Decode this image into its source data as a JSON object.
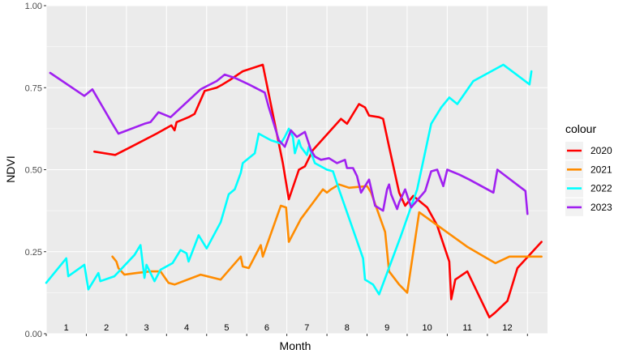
{
  "chart_data": {
    "type": "line",
    "xlabel": "Month",
    "ylabel": "NDVI",
    "ylim": [
      0,
      1
    ],
    "xlim": [
      0,
      12.5
    ],
    "y_ticks": [
      0,
      0.25,
      0.5,
      0.75,
      1
    ],
    "y_tick_labels": [
      "0.00",
      "0.25",
      "0.50",
      "0.75",
      "1.00"
    ],
    "month_labels": [
      "1",
      "2",
      "3",
      "4",
      "5",
      "6",
      "7",
      "8",
      "9",
      "10",
      "11",
      "12"
    ],
    "grid": true,
    "legend_title": "colour",
    "legend_position": "right",
    "series": [
      {
        "name": "2020",
        "color": "#ff0000",
        "points": [
          [
            1.2,
            0.555
          ],
          [
            1.72,
            0.545
          ],
          [
            2.12,
            0.57
          ],
          [
            2.75,
            0.61
          ],
          [
            3.12,
            0.635
          ],
          [
            3.2,
            0.62
          ],
          [
            3.25,
            0.645
          ],
          [
            3.55,
            0.66
          ],
          [
            3.7,
            0.67
          ],
          [
            3.95,
            0.74
          ],
          [
            4.25,
            0.75
          ],
          [
            4.4,
            0.76
          ],
          [
            4.6,
            0.775
          ],
          [
            4.9,
            0.8
          ],
          [
            5.4,
            0.82
          ],
          [
            5.9,
            0.52
          ],
          [
            6.05,
            0.41
          ],
          [
            6.3,
            0.5
          ],
          [
            6.45,
            0.51
          ],
          [
            6.65,
            0.56
          ],
          [
            7.35,
            0.655
          ],
          [
            7.5,
            0.64
          ],
          [
            7.8,
            0.7
          ],
          [
            7.95,
            0.69
          ],
          [
            8.05,
            0.665
          ],
          [
            8.3,
            0.66
          ],
          [
            8.4,
            0.655
          ],
          [
            8.55,
            0.57
          ],
          [
            8.8,
            0.43
          ],
          [
            8.95,
            0.39
          ],
          [
            9.15,
            0.42
          ],
          [
            9.5,
            0.385
          ],
          [
            9.75,
            0.33
          ],
          [
            10.05,
            0.22
          ],
          [
            10.1,
            0.105
          ],
          [
            10.2,
            0.165
          ],
          [
            10.5,
            0.19
          ],
          [
            11.05,
            0.05
          ],
          [
            11.2,
            0.065
          ],
          [
            11.5,
            0.1
          ],
          [
            11.75,
            0.2
          ],
          [
            12.05,
            0.24
          ],
          [
            12.35,
            0.28
          ]
        ]
      },
      {
        "name": "2021",
        "color": "#ff8c00",
        "points": [
          [
            1.65,
            0.235
          ],
          [
            1.75,
            0.22
          ],
          [
            1.8,
            0.2
          ],
          [
            1.95,
            0.18
          ],
          [
            2.25,
            0.185
          ],
          [
            2.6,
            0.19
          ],
          [
            2.85,
            0.19
          ],
          [
            3.05,
            0.155
          ],
          [
            3.2,
            0.15
          ],
          [
            3.85,
            0.18
          ],
          [
            4.35,
            0.165
          ],
          [
            4.85,
            0.235
          ],
          [
            4.9,
            0.205
          ],
          [
            5.05,
            0.2
          ],
          [
            5.35,
            0.27
          ],
          [
            5.4,
            0.235
          ],
          [
            5.85,
            0.39
          ],
          [
            5.98,
            0.385
          ],
          [
            6.05,
            0.28
          ],
          [
            6.35,
            0.35
          ],
          [
            6.9,
            0.44
          ],
          [
            7.0,
            0.43
          ],
          [
            7.1,
            0.44
          ],
          [
            7.3,
            0.455
          ],
          [
            7.55,
            0.445
          ],
          [
            8.0,
            0.45
          ],
          [
            8.1,
            0.43
          ],
          [
            8.45,
            0.31
          ],
          [
            8.55,
            0.19
          ],
          [
            8.8,
            0.15
          ],
          [
            9.0,
            0.125
          ],
          [
            9.3,
            0.37
          ],
          [
            10.5,
            0.265
          ],
          [
            11.2,
            0.215
          ],
          [
            11.55,
            0.235
          ],
          [
            12.35,
            0.235
          ]
        ]
      },
      {
        "name": "2022",
        "color": "#00ffff",
        "points": [
          [
            0.0,
            0.155
          ],
          [
            0.5,
            0.23
          ],
          [
            0.55,
            0.175
          ],
          [
            0.95,
            0.21
          ],
          [
            1.05,
            0.135
          ],
          [
            1.3,
            0.185
          ],
          [
            1.35,
            0.16
          ],
          [
            1.7,
            0.175
          ],
          [
            2.2,
            0.24
          ],
          [
            2.35,
            0.27
          ],
          [
            2.45,
            0.17
          ],
          [
            2.5,
            0.21
          ],
          [
            2.7,
            0.16
          ],
          [
            2.85,
            0.195
          ],
          [
            3.15,
            0.215
          ],
          [
            3.35,
            0.255
          ],
          [
            3.5,
            0.245
          ],
          [
            3.55,
            0.22
          ],
          [
            3.8,
            0.3
          ],
          [
            4.0,
            0.26
          ],
          [
            4.35,
            0.34
          ],
          [
            4.55,
            0.425
          ],
          [
            4.7,
            0.44
          ],
          [
            4.85,
            0.49
          ],
          [
            4.9,
            0.52
          ],
          [
            5.05,
            0.535
          ],
          [
            5.2,
            0.55
          ],
          [
            5.3,
            0.61
          ],
          [
            5.6,
            0.59
          ],
          [
            5.85,
            0.58
          ],
          [
            5.95,
            0.6
          ],
          [
            6.05,
            0.625
          ],
          [
            6.15,
            0.6
          ],
          [
            6.2,
            0.55
          ],
          [
            6.3,
            0.59
          ],
          [
            6.35,
            0.57
          ],
          [
            6.5,
            0.545
          ],
          [
            6.55,
            0.57
          ],
          [
            6.7,
            0.52
          ],
          [
            7.0,
            0.5
          ],
          [
            7.15,
            0.495
          ],
          [
            7.3,
            0.44
          ],
          [
            7.9,
            0.23
          ],
          [
            7.95,
            0.165
          ],
          [
            8.15,
            0.15
          ],
          [
            8.3,
            0.12
          ],
          [
            8.85,
            0.3
          ],
          [
            9.25,
            0.44
          ],
          [
            9.6,
            0.64
          ],
          [
            9.85,
            0.69
          ],
          [
            10.05,
            0.72
          ],
          [
            10.25,
            0.7
          ],
          [
            10.65,
            0.77
          ],
          [
            11.4,
            0.82
          ],
          [
            12.05,
            0.76
          ],
          [
            12.1,
            0.8
          ]
        ]
      },
      {
        "name": "2023",
        "color": "#a020f0",
        "points": [
          [
            0.1,
            0.795
          ],
          [
            0.95,
            0.725
          ],
          [
            1.15,
            0.745
          ],
          [
            1.65,
            0.64
          ],
          [
            1.8,
            0.61
          ],
          [
            2.45,
            0.64
          ],
          [
            2.6,
            0.645
          ],
          [
            2.8,
            0.675
          ],
          [
            3.1,
            0.66
          ],
          [
            3.85,
            0.745
          ],
          [
            4.25,
            0.77
          ],
          [
            4.45,
            0.79
          ],
          [
            4.7,
            0.78
          ],
          [
            5.05,
            0.76
          ],
          [
            5.45,
            0.735
          ],
          [
            5.55,
            0.69
          ],
          [
            5.8,
            0.59
          ],
          [
            5.95,
            0.57
          ],
          [
            6.1,
            0.62
          ],
          [
            6.25,
            0.6
          ],
          [
            6.45,
            0.615
          ],
          [
            6.6,
            0.56
          ],
          [
            6.7,
            0.54
          ],
          [
            6.85,
            0.53
          ],
          [
            7.05,
            0.535
          ],
          [
            7.25,
            0.52
          ],
          [
            7.45,
            0.53
          ],
          [
            7.5,
            0.505
          ],
          [
            7.65,
            0.505
          ],
          [
            7.75,
            0.48
          ],
          [
            7.85,
            0.43
          ],
          [
            8.05,
            0.47
          ],
          [
            8.2,
            0.39
          ],
          [
            8.4,
            0.375
          ],
          [
            8.5,
            0.44
          ],
          [
            8.55,
            0.455
          ],
          [
            8.6,
            0.425
          ],
          [
            8.75,
            0.38
          ],
          [
            8.8,
            0.4
          ],
          [
            8.95,
            0.44
          ],
          [
            9.1,
            0.385
          ],
          [
            9.45,
            0.435
          ],
          [
            9.6,
            0.495
          ],
          [
            9.75,
            0.5
          ],
          [
            9.9,
            0.45
          ],
          [
            10.0,
            0.5
          ],
          [
            10.3,
            0.485
          ],
          [
            10.55,
            0.47
          ],
          [
            11.15,
            0.43
          ],
          [
            11.25,
            0.5
          ],
          [
            11.95,
            0.435
          ],
          [
            12.0,
            0.365
          ]
        ]
      }
    ]
  }
}
